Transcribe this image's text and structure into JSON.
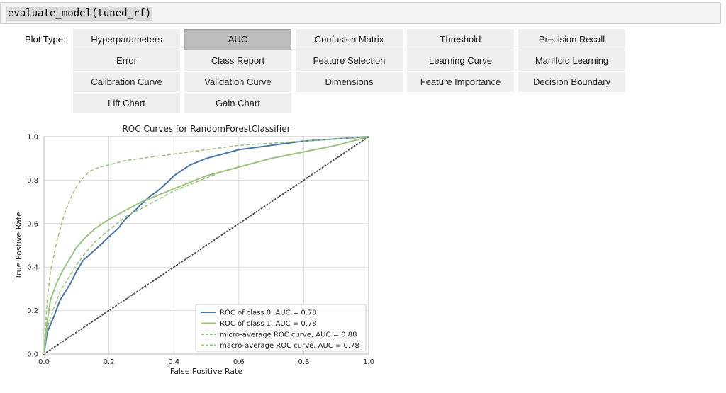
{
  "cell": {
    "code": "evaluate_model(tuned_rf)"
  },
  "plot_type": {
    "label": "Plot Type:",
    "selected": "AUC",
    "buttons": [
      "Hyperparameters",
      "AUC",
      "Confusion Matrix",
      "Threshold",
      "Precision Recall",
      "Error",
      "Class Report",
      "Feature Selection",
      "Learning Curve",
      "Manifold Learning",
      "Calibration Curve",
      "Validation Curve",
      "Dimensions",
      "Feature Importance",
      "Decision Boundary",
      "Lift Chart",
      "Gain Chart"
    ]
  },
  "colors": {
    "class0": "#4878a8",
    "class1": "#9bc27e",
    "average": "#9bc27e",
    "diagonal": "#555555",
    "grid": "#dddddd",
    "button_bg": "#efefef",
    "button_active_bg": "#bdbdbd",
    "cell_bg": "#f5f5f5"
  },
  "chart_data": {
    "type": "line",
    "title": "ROC Curves for RandomForestClassifier",
    "xlabel": "False Positive Rate",
    "ylabel": "True Postive Rate",
    "xlim": [
      0,
      1
    ],
    "ylim": [
      0,
      1
    ],
    "xticks": [
      "0.0",
      "0.2",
      "0.4",
      "0.6",
      "0.8",
      "1.0"
    ],
    "yticks": [
      "0.0",
      "0.2",
      "0.4",
      "0.6",
      "0.8",
      "1.0"
    ],
    "grid": true,
    "legend_position": "lower-right",
    "series": [
      {
        "name": "ROC of class 0, AUC = 0.78",
        "style": "solid",
        "x": [
          0,
          0.01,
          0.03,
          0.05,
          0.08,
          0.1,
          0.12,
          0.15,
          0.18,
          0.2,
          0.23,
          0.25,
          0.28,
          0.3,
          0.33,
          0.35,
          0.38,
          0.4,
          0.43,
          0.45,
          0.5,
          0.55,
          0.6,
          0.65,
          0.7,
          0.8,
          0.9,
          1.0
        ],
        "y": [
          0,
          0.1,
          0.17,
          0.25,
          0.32,
          0.38,
          0.43,
          0.47,
          0.51,
          0.54,
          0.58,
          0.62,
          0.66,
          0.69,
          0.73,
          0.75,
          0.79,
          0.82,
          0.85,
          0.87,
          0.9,
          0.92,
          0.94,
          0.95,
          0.96,
          0.98,
          0.99,
          1.0
        ]
      },
      {
        "name": "ROC of class 1, AUC = 0.78",
        "style": "solid",
        "x": [
          0,
          0.01,
          0.02,
          0.04,
          0.06,
          0.08,
          0.1,
          0.13,
          0.16,
          0.2,
          0.25,
          0.3,
          0.35,
          0.4,
          0.45,
          0.5,
          0.55,
          0.6,
          0.65,
          0.7,
          0.8,
          0.9,
          1.0
        ],
        "y": [
          0,
          0.15,
          0.25,
          0.33,
          0.39,
          0.44,
          0.49,
          0.54,
          0.58,
          0.62,
          0.66,
          0.7,
          0.73,
          0.76,
          0.79,
          0.82,
          0.84,
          0.86,
          0.88,
          0.9,
          0.93,
          0.96,
          1.0
        ]
      },
      {
        "name": "micro-average ROC curve, AUC = 0.88",
        "style": "dashed",
        "x": [
          0,
          0.01,
          0.02,
          0.04,
          0.06,
          0.08,
          0.1,
          0.12,
          0.14,
          0.17,
          0.2,
          0.25,
          0.3,
          0.4,
          0.5,
          0.6,
          0.7,
          0.8,
          0.9,
          1.0
        ],
        "y": [
          0,
          0.25,
          0.38,
          0.52,
          0.63,
          0.71,
          0.77,
          0.81,
          0.84,
          0.86,
          0.87,
          0.89,
          0.9,
          0.92,
          0.94,
          0.96,
          0.97,
          0.98,
          0.99,
          1.0
        ]
      },
      {
        "name": "macro-average ROC curve, AUC = 0.78",
        "style": "dashed",
        "x": [
          0,
          0.01,
          0.03,
          0.05,
          0.08,
          0.1,
          0.13,
          0.16,
          0.2,
          0.25,
          0.3,
          0.35,
          0.4,
          0.45,
          0.5,
          0.55,
          0.6,
          0.65,
          0.7,
          0.8,
          0.9,
          1.0
        ],
        "y": [
          0,
          0.12,
          0.21,
          0.29,
          0.36,
          0.41,
          0.47,
          0.52,
          0.57,
          0.63,
          0.67,
          0.71,
          0.75,
          0.78,
          0.81,
          0.84,
          0.86,
          0.88,
          0.9,
          0.93,
          0.96,
          1.0
        ]
      }
    ],
    "reference_line": {
      "x": [
        0,
        1
      ],
      "y": [
        0,
        1
      ],
      "style": "dotted"
    }
  }
}
